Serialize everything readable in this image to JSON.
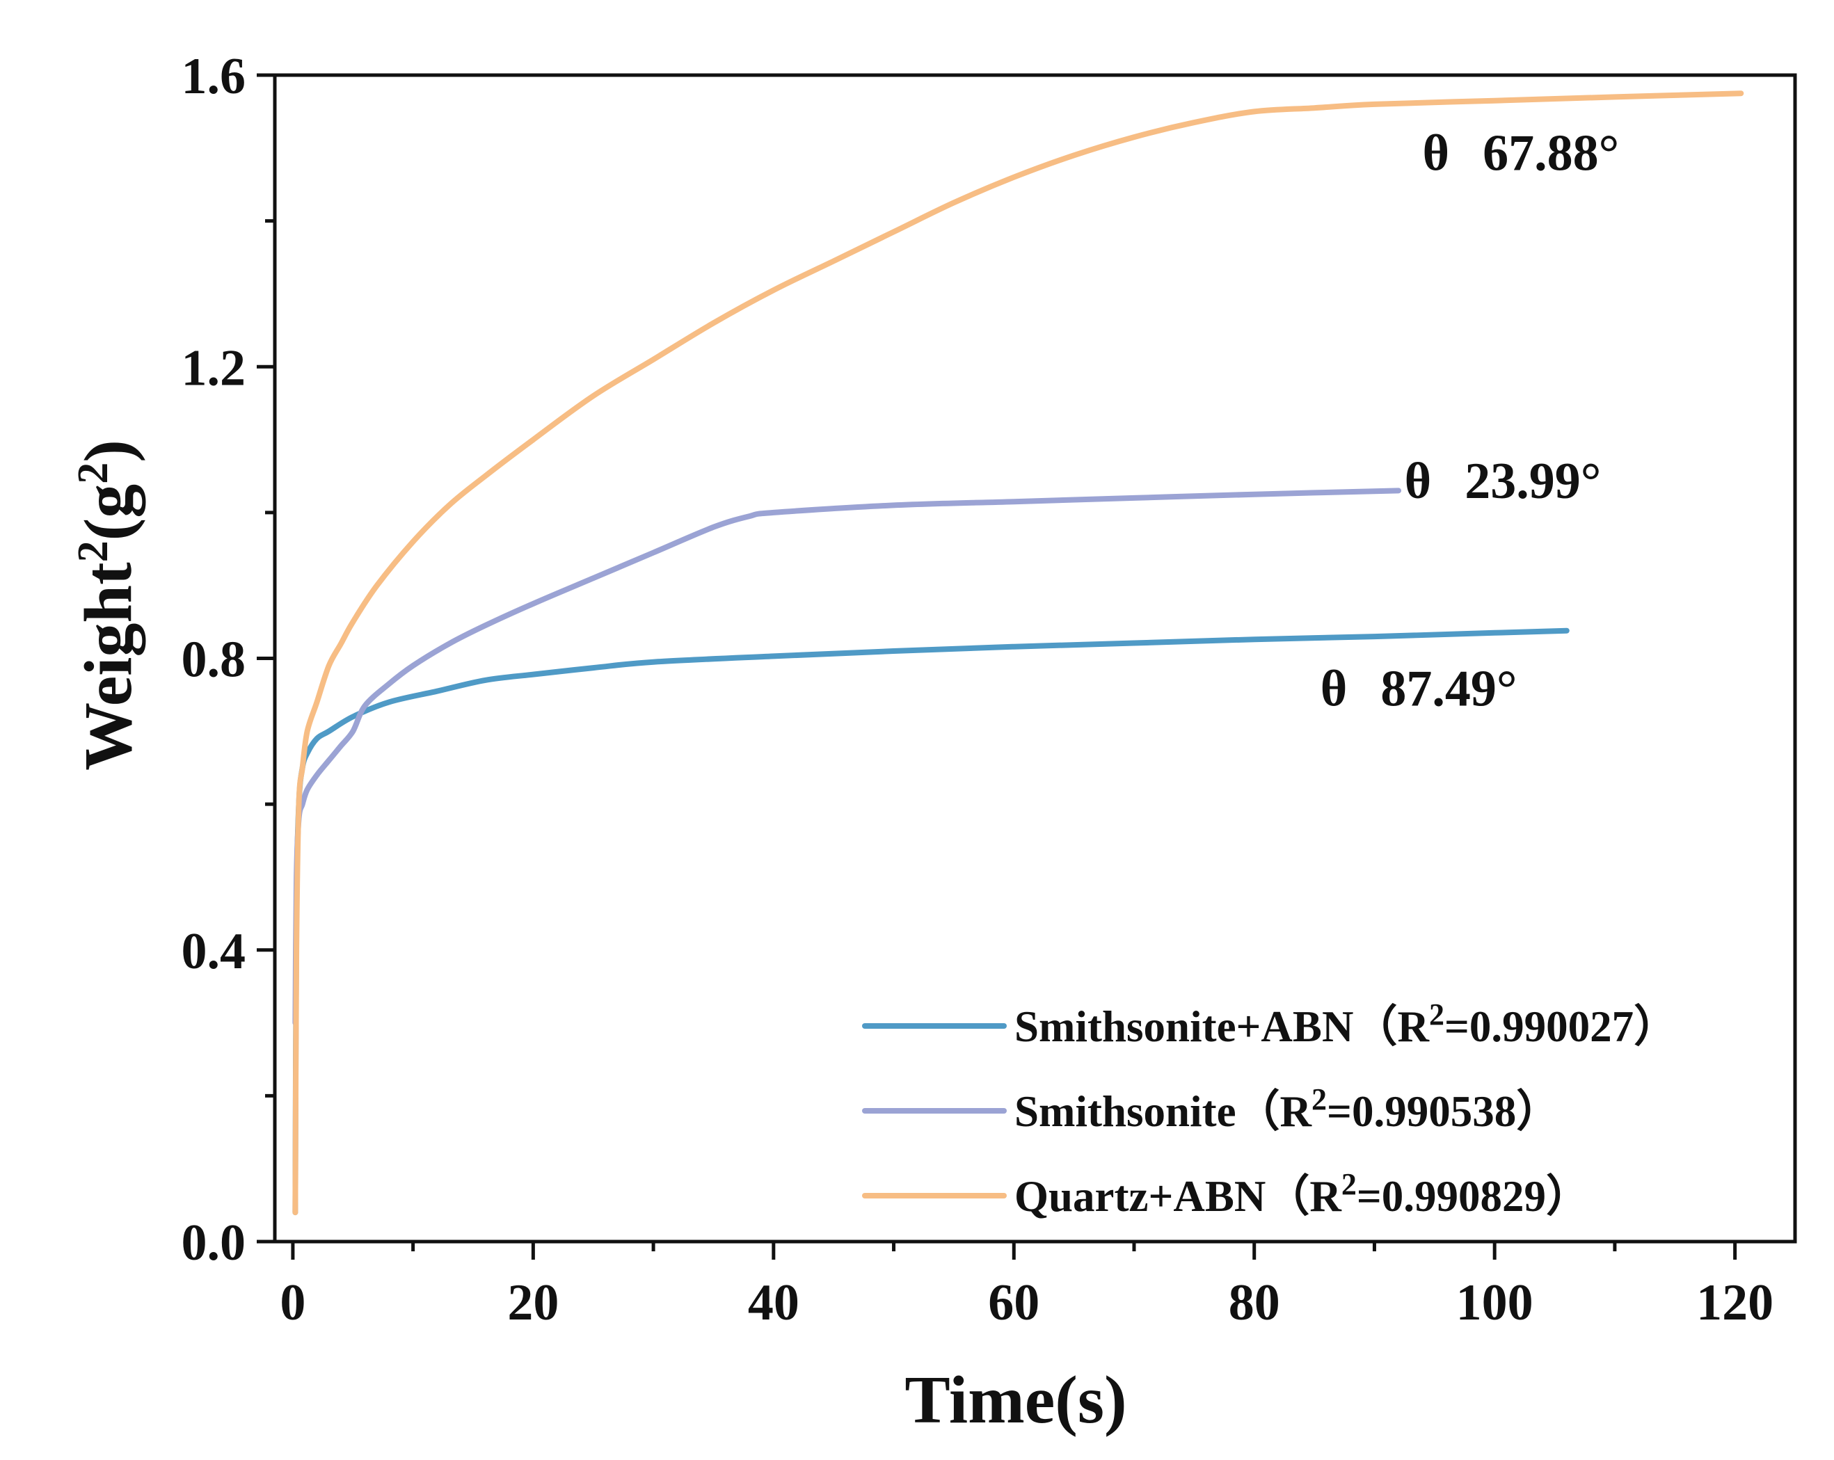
{
  "chart_data": {
    "type": "line",
    "title": "",
    "xlabel": "Time(s)",
    "ylabel": {
      "base": "Weight",
      "sup": "2",
      "unit_open": "(g",
      "unit_sup": "2",
      "unit_close": ")"
    },
    "xlim": [
      -1.5,
      125
    ],
    "ylim": [
      0,
      1.6
    ],
    "xticks": [
      0,
      20,
      40,
      60,
      80,
      100,
      120
    ],
    "xtick_labels": [
      "0",
      "20",
      "40",
      "60",
      "80",
      "100",
      "120"
    ],
    "xminor": [
      10,
      30,
      50,
      70,
      90,
      110
    ],
    "yticks": [
      0,
      0.4,
      0.8,
      1.2,
      1.6
    ],
    "ytick_labels": [
      "0.0",
      "0.4",
      "0.8",
      "1.2",
      "1.6"
    ],
    "yminor": [
      0.2,
      0.6,
      1.0,
      1.4
    ],
    "grid": false,
    "legend_position": "bottom-right",
    "series": [
      {
        "name": "Smithsonite+ABN",
        "legend_prefix": "Smithsonite+ABN（R",
        "legend_sup": "2",
        "legend_suffix": "=0.990027）",
        "color": "#4F9AC6",
        "x": [
          0.2,
          0.3,
          0.5,
          0.8,
          1.2,
          2,
          3,
          5,
          8,
          12,
          16,
          20,
          25,
          30,
          40,
          50,
          60,
          70,
          80,
          90,
          100,
          106
        ],
        "y": [
          0.04,
          0.45,
          0.6,
          0.65,
          0.67,
          0.69,
          0.7,
          0.72,
          0.74,
          0.755,
          0.77,
          0.778,
          0.787,
          0.795,
          0.803,
          0.81,
          0.816,
          0.821,
          0.826,
          0.83,
          0.835,
          0.838
        ]
      },
      {
        "name": "Smithsonite",
        "legend_prefix": "Smithsonite（R",
        "legend_sup": "2",
        "legend_suffix": "=0.990538）",
        "color": "#9BA3D4",
        "x": [
          0.2,
          0.3,
          0.5,
          0.8,
          1.2,
          2,
          3,
          4,
          5,
          6,
          8,
          10,
          13,
          16,
          20,
          25,
          30,
          35,
          38,
          40,
          50,
          60,
          70,
          80,
          92
        ],
        "y": [
          0.3,
          0.5,
          0.58,
          0.6,
          0.62,
          0.64,
          0.66,
          0.68,
          0.7,
          0.735,
          0.765,
          0.79,
          0.82,
          0.845,
          0.875,
          0.91,
          0.945,
          0.98,
          0.995,
          1.0,
          1.01,
          1.015,
          1.02,
          1.025,
          1.03
        ]
      },
      {
        "name": "Quartz+ABN",
        "legend_prefix": "Quartz+ABN（R",
        "legend_sup": "2",
        "legend_suffix": "=0.990829）",
        "color": "#F7BD84",
        "x": [
          0.2,
          0.3,
          0.5,
          0.8,
          1.2,
          2,
          3,
          4,
          5,
          7,
          10,
          13,
          16,
          20,
          25,
          30,
          35,
          40,
          45,
          50,
          55,
          60,
          65,
          70,
          75,
          80,
          85,
          90,
          100,
          110,
          120.5
        ],
        "y": [
          0.04,
          0.4,
          0.6,
          0.65,
          0.7,
          0.74,
          0.79,
          0.82,
          0.85,
          0.9,
          0.96,
          1.01,
          1.05,
          1.1,
          1.16,
          1.21,
          1.26,
          1.305,
          1.345,
          1.385,
          1.425,
          1.46,
          1.49,
          1.515,
          1.535,
          1.55,
          1.555,
          1.56,
          1.565,
          1.57,
          1.575
        ]
      }
    ],
    "annotations": [
      {
        "symbol": "θ",
        "text": "67.88°",
        "x": 94,
        "y": 1.47
      },
      {
        "symbol": "θ",
        "text": "23.99°",
        "x": 92.5,
        "y": 1.02
      },
      {
        "symbol": "θ",
        "text": "87.49°",
        "x": 85.5,
        "y": 0.735
      }
    ]
  }
}
